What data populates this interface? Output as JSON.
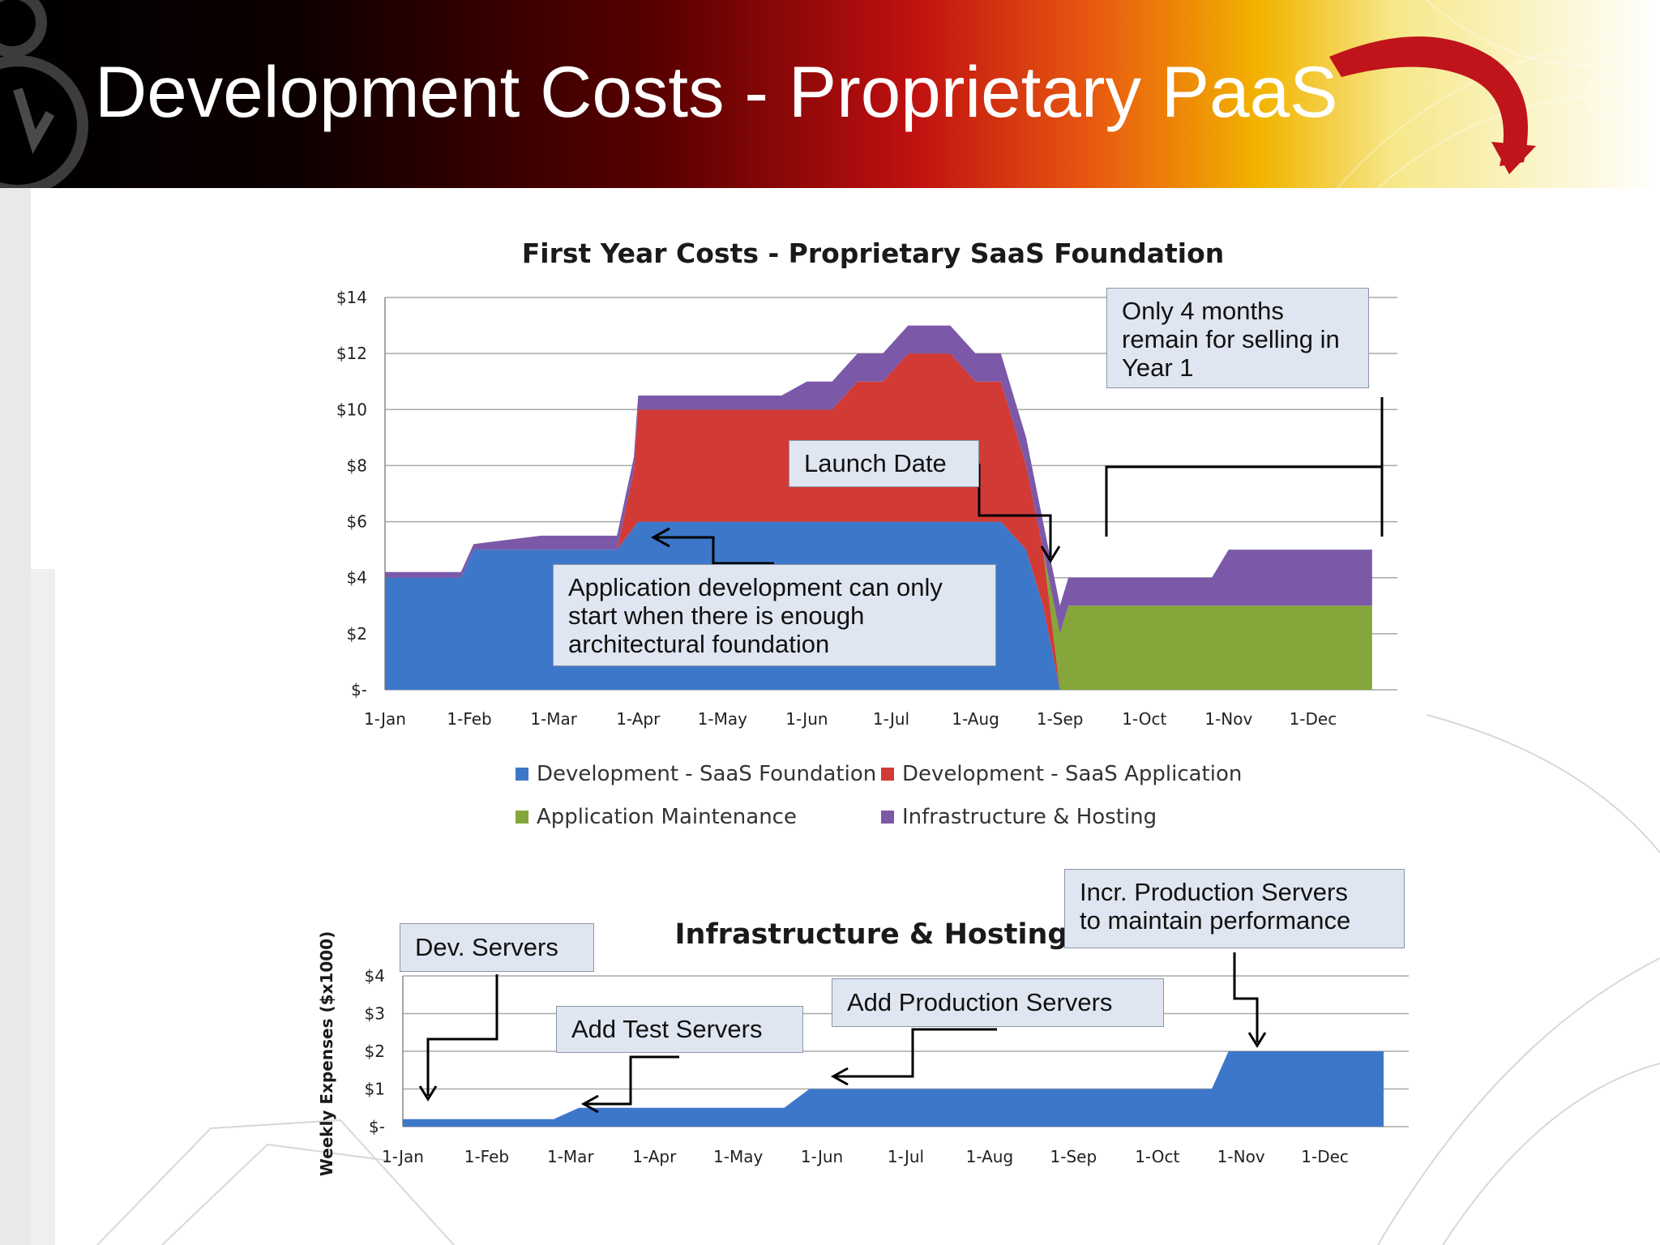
{
  "slide_title": "Development Costs - Proprietary PaaS",
  "chart_data": [
    {
      "type": "area",
      "stacked": true,
      "title": "First Year Costs - Proprietary SaaS Foundation",
      "ylabel": "",
      "xlabel": "",
      "y_tick_labels": [
        "$-",
        "$2",
        "$4",
        "$6",
        "$8",
        "$10",
        "$12",
        "$14"
      ],
      "ylim": [
        0,
        14
      ],
      "x_tick_labels": [
        "1-Jan",
        "1-Feb",
        "1-Mar",
        "1-Apr",
        "1-May",
        "1-Jun",
        "1-Jul",
        "1-Aug",
        "1-Sep",
        "1-Oct",
        "1-Nov",
        "1-Dec"
      ],
      "x_months": [
        0,
        0.9,
        1.05,
        1.85,
        2.75,
        2.95,
        3.0,
        4.7,
        5.0,
        5.3,
        5.6,
        5.9,
        6.2,
        6.7,
        7.0,
        7.3,
        7.6,
        7.8,
        8.0,
        8.1,
        8.7,
        9.0,
        9.5,
        9.8,
        10.0,
        10.3,
        10.8,
        11.7
      ],
      "series": [
        {
          "name": "Development  - SaaS Foundation",
          "color": "#3d77c9",
          "values": [
            4,
            4,
            5,
            5,
            5,
            5.8,
            6,
            6,
            6,
            6,
            6,
            6,
            6,
            6,
            6,
            6,
            5,
            3,
            0,
            0,
            0,
            0,
            0,
            0,
            0,
            0,
            0,
            0
          ]
        },
        {
          "name": "Development  - SaaS Application",
          "color": "#d23a36",
          "values": [
            0,
            0,
            0,
            0,
            0,
            2,
            4,
            4,
            4,
            4,
            5,
            5,
            6,
            6,
            5,
            5,
            3,
            2,
            0,
            0,
            0,
            0,
            0,
            0,
            0,
            0,
            0,
            0
          ]
        },
        {
          "name": "Application Maintenance",
          "color": "#84a63a",
          "values": [
            0,
            0,
            0,
            0,
            0,
            0,
            0,
            0,
            0,
            0,
            0,
            0,
            0,
            0,
            0,
            0,
            0,
            0,
            2,
            3,
            3,
            3,
            3,
            3,
            3,
            3,
            3,
            3
          ]
        },
        {
          "name": "Infrastructure & Hosting",
          "color": "#7b59a8",
          "values": [
            0.2,
            0.2,
            0.2,
            0.5,
            0.5,
            0.5,
            0.5,
            0.5,
            1,
            1,
            1,
            1,
            1,
            1,
            1,
            1,
            1,
            1,
            1,
            1,
            1,
            1,
            1,
            1,
            2,
            2,
            2,
            2
          ]
        }
      ],
      "legend": [
        "Development  - SaaS Foundation",
        "Development  - SaaS Application",
        "Application Maintenance",
        "Infrastructure & Hosting"
      ],
      "legend_position": "bottom",
      "grid": true,
      "annotations": [
        "Launch Date",
        "Only 4 months remain for selling in Year 1",
        "Application development  can only start when there is enough architectural foundation"
      ]
    },
    {
      "type": "area",
      "title": "Infrastructure & Hosting",
      "ylabel": "Weekly Expenses ($x1000)",
      "xlabel": "",
      "y_tick_labels": [
        "$-",
        "$1",
        "$2",
        "$3",
        "$4"
      ],
      "ylim": [
        0,
        4
      ],
      "x_tick_labels": [
        "1-Jan",
        "1-Feb",
        "1-Mar",
        "1-Apr",
        "1-May",
        "1-Jun",
        "1-Jul",
        "1-Aug",
        "1-Sep",
        "1-Oct",
        "1-Nov",
        "1-Dec"
      ],
      "x_months": [
        0,
        1.8,
        2.1,
        4.55,
        4.85,
        9.65,
        9.85,
        11.7
      ],
      "series": [
        {
          "color": "#3d77c9",
          "values": [
            0.2,
            0.2,
            0.5,
            0.5,
            1.0,
            1.0,
            2.0,
            2.0
          ]
        }
      ],
      "grid": true,
      "annotations": [
        "Dev. Servers",
        "Add Test Servers",
        "Add  Production Servers",
        "Incr.  Production Servers to maintain performance"
      ]
    }
  ],
  "callouts": {
    "only4": [
      "Only 4 months",
      "remain for selling in",
      "Year 1"
    ],
    "launch": "Launch Date",
    "appdev": [
      "Application development  can only",
      "start when there is enough",
      "architectural foundation"
    ],
    "devservers": "Dev. Servers",
    "testservers": "Add Test Servers",
    "prodservers": "Add  Production Servers",
    "incr": [
      "Incr.  Production Servers",
      "to maintain performance"
    ]
  },
  "colors": {
    "foundation": "#3d77c9",
    "application": "#d23a36",
    "maintenance": "#84a63a",
    "hosting": "#7b59a8",
    "callout_bg": "#dfe6f1"
  }
}
